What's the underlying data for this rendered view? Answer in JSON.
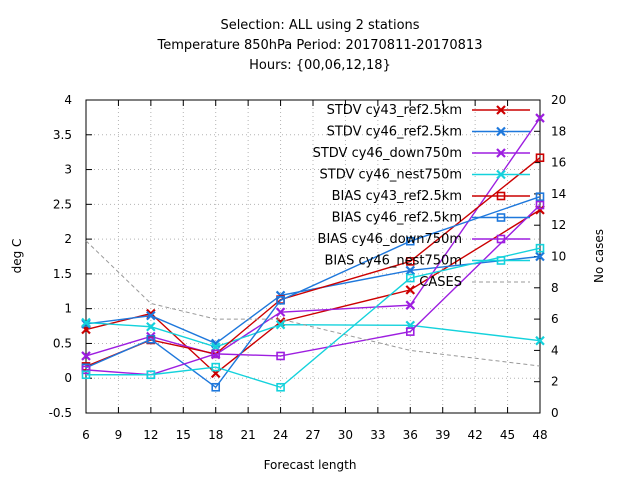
{
  "chart_data": {
    "type": "line",
    "title": [
      "Selection: ALL using     2 stations",
      "Temperature 850hPa   Period: 20170811-20170813",
      "Hours: {00,06,12,18}"
    ],
    "xlabel": "Forecast length",
    "ylabel": "deg C",
    "y2label": "No cases",
    "xlim": [
      6,
      48
    ],
    "ylim": [
      -0.5,
      4
    ],
    "y2lim": [
      0,
      20
    ],
    "xticks": [
      6,
      9,
      12,
      15,
      18,
      21,
      24,
      27,
      30,
      33,
      36,
      39,
      42,
      45,
      48
    ],
    "yticks": [
      -0.5,
      0,
      0.5,
      1,
      1.5,
      2,
      2.5,
      3,
      3.5,
      4
    ],
    "y2ticks": [
      0,
      2,
      4,
      6,
      8,
      10,
      12,
      14,
      16,
      18,
      20
    ],
    "grid": true,
    "legend_position": "top-right",
    "series": [
      {
        "name": "STDV cy43_ref2.5km",
        "color": "#cc0000",
        "marker": "x-cross",
        "x": [
          6,
          12,
          18,
          24,
          36,
          48
        ],
        "y": [
          0.7,
          0.93,
          0.07,
          0.81,
          1.27,
          2.42
        ]
      },
      {
        "name": "STDV cy46_ref2.5km",
        "color": "#1e78dc",
        "marker": "x-cross",
        "x": [
          6,
          12,
          18,
          24,
          36,
          48
        ],
        "y": [
          0.78,
          0.9,
          0.5,
          1.19,
          1.55,
          1.75
        ]
      },
      {
        "name": "STDV cy46_down750m",
        "color": "#9d1ee0",
        "marker": "x-cross",
        "x": [
          6,
          12,
          18,
          24,
          36,
          48
        ],
        "y": [
          0.32,
          0.6,
          0.34,
          0.95,
          1.05,
          3.74
        ]
      },
      {
        "name": "STDV cy46_nest750m",
        "color": "#14d2dc",
        "marker": "x-cross",
        "x": [
          6,
          12,
          18,
          24,
          36,
          48
        ],
        "y": [
          0.8,
          0.74,
          0.45,
          0.77,
          0.76,
          0.54
        ]
      },
      {
        "name": "BIAS cy43_ref2.5km",
        "color": "#cc0000",
        "marker": "square",
        "x": [
          6,
          12,
          18,
          24,
          36,
          48
        ],
        "y": [
          0.17,
          0.55,
          0.35,
          1.13,
          1.68,
          3.17
        ]
      },
      {
        "name": "BIAS cy46_ref2.5km",
        "color": "#1e78dc",
        "marker": "square",
        "x": [
          6,
          12,
          18,
          24,
          36,
          48
        ],
        "y": [
          0.15,
          0.56,
          -0.13,
          1.12,
          1.97,
          2.61
        ]
      },
      {
        "name": "BIAS cy46_down750m",
        "color": "#9d1ee0",
        "marker": "square",
        "x": [
          6,
          12,
          18,
          24,
          36,
          48
        ],
        "y": [
          0.12,
          0.05,
          0.35,
          0.32,
          0.67,
          2.49
        ]
      },
      {
        "name": "BIAS cy46_nest750m",
        "color": "#14d2dc",
        "marker": "square",
        "x": [
          6,
          12,
          18,
          24,
          36,
          48
        ],
        "y": [
          0.05,
          0.05,
          0.16,
          -0.13,
          1.44,
          1.87
        ]
      },
      {
        "name": "CASES",
        "color": "#999999",
        "marker": "none",
        "dashed": true,
        "axis": "y2",
        "x": [
          6,
          12,
          18,
          24,
          36,
          48
        ],
        "y": [
          11,
          7,
          6,
          6,
          4,
          3
        ]
      }
    ]
  }
}
